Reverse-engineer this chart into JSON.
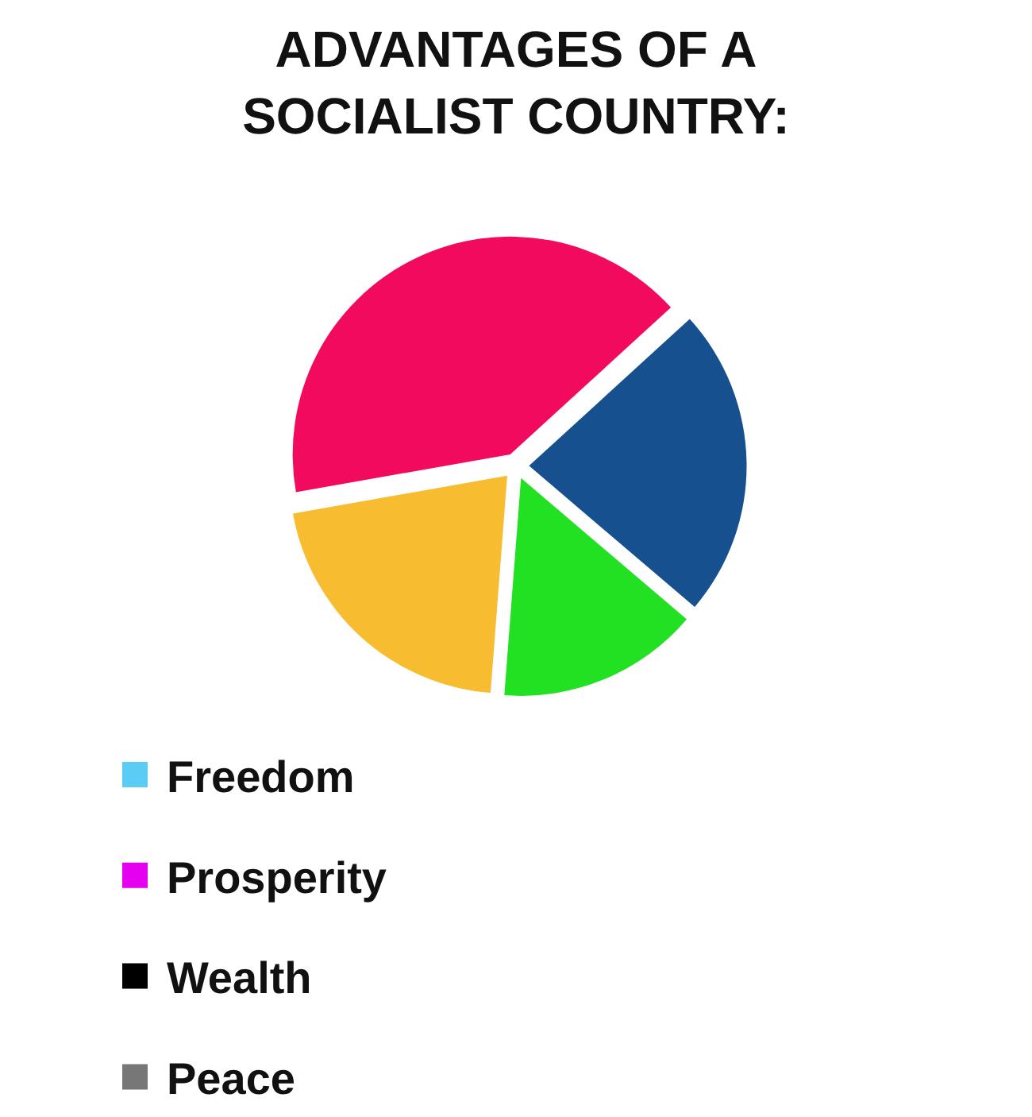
{
  "chart_data": {
    "type": "pie",
    "title": "ADVANTAGES OF A\nSOCIALIST COUNTRY:",
    "categories": [
      null,
      null,
      null,
      null,
      "Freedom",
      "Prosperity",
      "Wealth",
      "Peace"
    ],
    "values": [
      41,
      23,
      15,
      21,
      0,
      0,
      0,
      0
    ],
    "colors": [
      "#f20a5e",
      "#16508f",
      "#22e022",
      "#f7bc30",
      "#5bcdf5",
      "#e600f0",
      "#000000",
      "#777777"
    ],
    "legend": "bottom left"
  }
}
